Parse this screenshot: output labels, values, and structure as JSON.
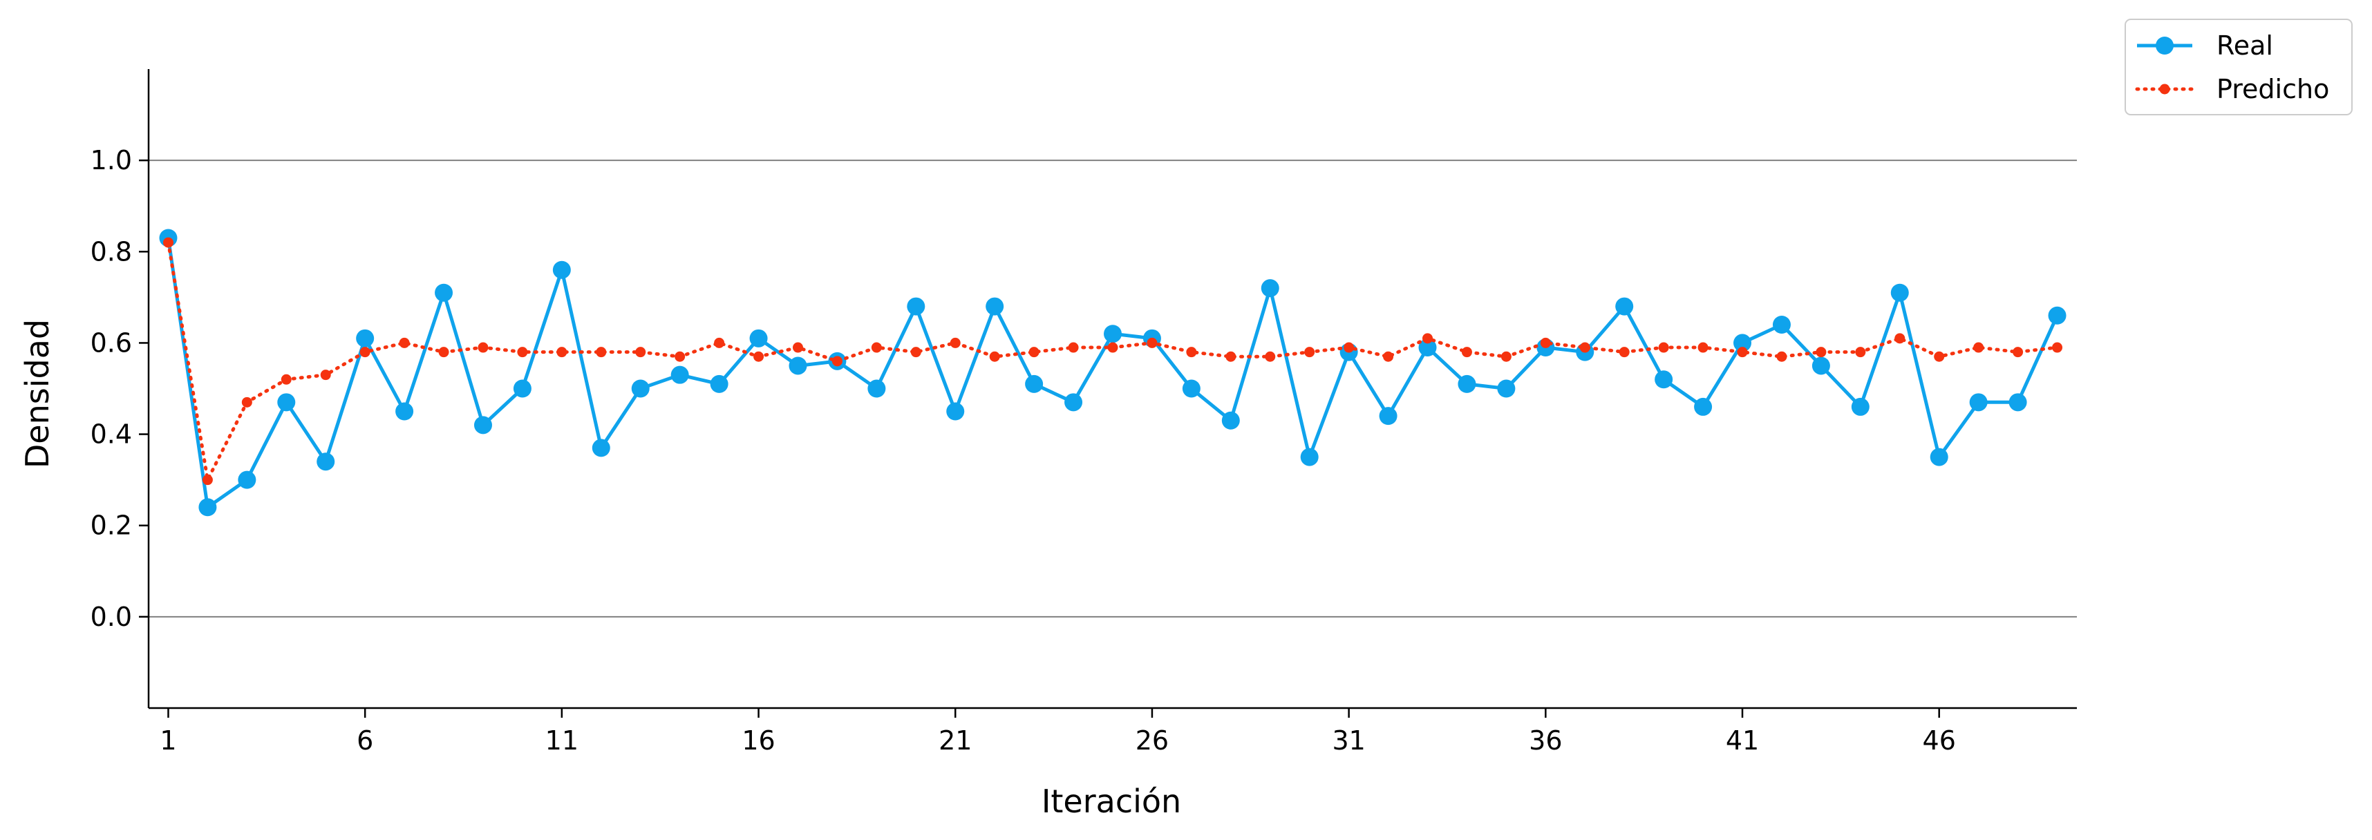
{
  "chart_data": {
    "type": "line",
    "title": "",
    "xlabel": "Iteración",
    "ylabel": "Densidad",
    "xlim": [
      0.5,
      49.5
    ],
    "ylim": [
      -0.2,
      1.2
    ],
    "x_ticks": [
      1,
      6,
      11,
      16,
      21,
      26,
      31,
      36,
      41,
      46
    ],
    "y_ticks": [
      0.0,
      0.2,
      0.4,
      0.6,
      0.8,
      1.0
    ],
    "y_tick_labels": [
      "0.0",
      "0.2",
      "0.4",
      "0.6",
      "0.8",
      "1.0"
    ],
    "grid": "horizontal lines at y=0.0 and y=1.0",
    "legend_position": "outside top-right",
    "x": [
      1,
      2,
      3,
      4,
      5,
      6,
      7,
      8,
      9,
      10,
      11,
      12,
      13,
      14,
      15,
      16,
      17,
      18,
      19,
      20,
      21,
      22,
      23,
      24,
      25,
      26,
      27,
      28,
      29,
      30,
      31,
      32,
      33,
      34,
      35,
      36,
      37,
      38,
      39,
      40,
      41,
      42,
      43,
      44,
      45,
      46,
      47,
      48,
      49
    ],
    "series": [
      {
        "name": "Real",
        "style": "solid line with large circle markers",
        "color": "#0FA3EC",
        "values": [
          0.83,
          0.24,
          0.3,
          0.47,
          0.34,
          0.61,
          0.45,
          0.71,
          0.42,
          0.5,
          0.76,
          0.37,
          0.5,
          0.53,
          0.51,
          0.61,
          0.55,
          0.56,
          0.5,
          0.68,
          0.45,
          0.68,
          0.51,
          0.47,
          0.62,
          0.61,
          0.5,
          0.43,
          0.72,
          0.35,
          0.58,
          0.44,
          0.59,
          0.51,
          0.5,
          0.59,
          0.58,
          0.68,
          0.52,
          0.46,
          0.6,
          0.64,
          0.55,
          0.46,
          0.71,
          0.35,
          0.47,
          0.47,
          0.66
        ]
      },
      {
        "name": "Predicho",
        "style": "dotted line with small circle markers",
        "color": "#F5330F",
        "values": [
          0.82,
          0.3,
          0.47,
          0.52,
          0.53,
          0.58,
          0.6,
          0.58,
          0.59,
          0.58,
          0.58,
          0.58,
          0.58,
          0.57,
          0.6,
          0.57,
          0.59,
          0.56,
          0.59,
          0.58,
          0.6,
          0.57,
          0.58,
          0.59,
          0.59,
          0.6,
          0.58,
          0.57,
          0.57,
          0.58,
          0.59,
          0.57,
          0.61,
          0.58,
          0.57,
          0.6,
          0.59,
          0.58,
          0.59,
          0.59,
          0.58,
          0.57,
          0.58,
          0.58,
          0.61,
          0.57,
          0.59,
          0.58,
          0.59
        ]
      }
    ]
  }
}
